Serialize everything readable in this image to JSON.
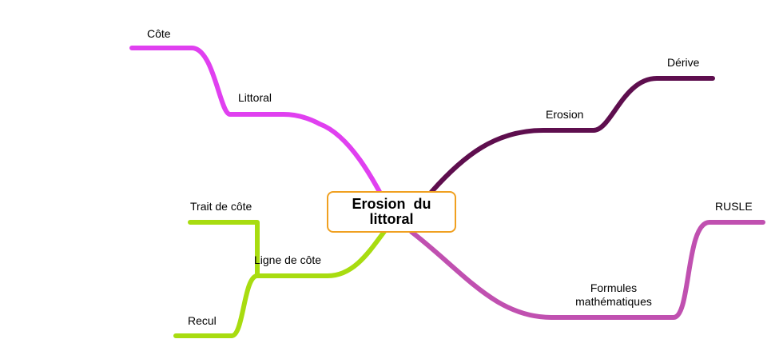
{
  "central_topic": {
    "line1": "Erosion  du",
    "line2": "littoral",
    "border_color": "#f0a020"
  },
  "branches": {
    "left_top": {
      "color": "#e040f0",
      "nodes": {
        "cote": "Côte",
        "littoral": "Littoral"
      }
    },
    "left_bottom": {
      "color": "#a8dc10",
      "nodes": {
        "trait_de_cote": "Trait de côte",
        "ligne_de_cote": "Ligne de côte",
        "recul": "Recul"
      }
    },
    "right_top": {
      "color": "#5e0e4e",
      "nodes": {
        "erosion": "Erosion",
        "derive": "Dérive"
      }
    },
    "right_bottom": {
      "color": "#c050b0",
      "nodes": {
        "formules_line1": "Formules",
        "formules_line2": "mathématiques",
        "rusle": "RUSLE"
      }
    }
  }
}
